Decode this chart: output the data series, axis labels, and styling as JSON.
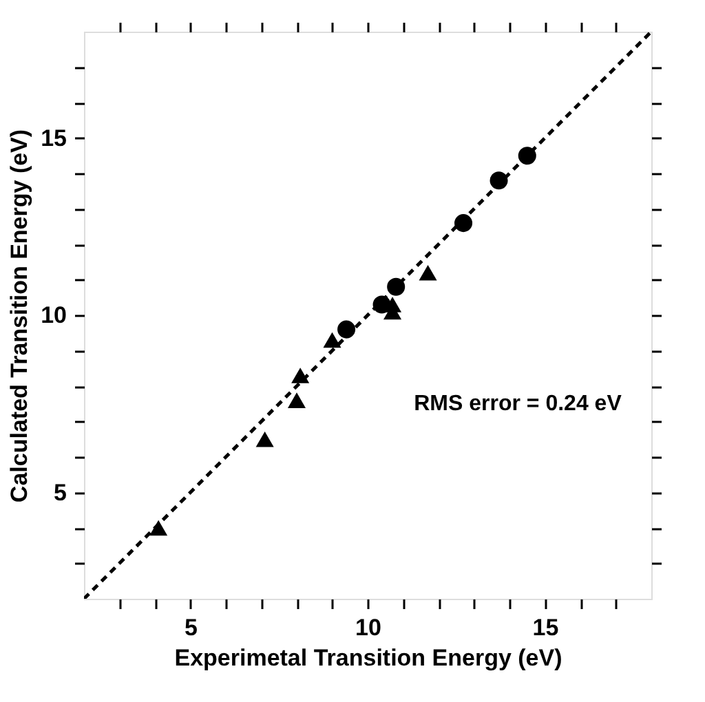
{
  "chart_data": {
    "type": "scatter",
    "xlabel": "Experimetal Transition Energy (eV)",
    "ylabel": "Calculated Transition Energy (eV)",
    "xlim": [
      2,
      18
    ],
    "ylim": [
      2,
      18
    ],
    "xticks": [
      {
        "value": 3,
        "label": null
      },
      {
        "value": 4,
        "label": null
      },
      5,
      {
        "value": 6,
        "label": null
      },
      {
        "value": 7,
        "label": null
      },
      {
        "value": 8,
        "label": null
      },
      {
        "value": 9,
        "label": null
      },
      10,
      {
        "value": 11,
        "label": null
      },
      {
        "value": 12,
        "label": null
      },
      {
        "value": 13,
        "label": null
      },
      {
        "value": 14,
        "label": null
      },
      15,
      {
        "value": 16,
        "label": null
      },
      {
        "value": 17,
        "label": null
      }
    ],
    "yticks": [
      {
        "value": 3,
        "label": null
      },
      {
        "value": 4,
        "label": null
      },
      5,
      {
        "value": 6,
        "label": null
      },
      {
        "value": 7,
        "label": null
      },
      {
        "value": 8,
        "label": null
      },
      {
        "value": 9,
        "label": null
      },
      10,
      {
        "value": 11,
        "label": null
      },
      {
        "value": 12,
        "label": null
      },
      {
        "value": 13,
        "label": null
      },
      {
        "value": 14,
        "label": null
      },
      15,
      {
        "value": 16,
        "label": null
      },
      {
        "value": 17,
        "label": null
      }
    ],
    "grid": false,
    "annotations": [
      "RMS error = 0.24 eV"
    ],
    "series": [
      {
        "type": "line",
        "color": "#000000",
        "marker": "none",
        "line_style": "dashed",
        "x": [
          2,
          18
        ],
        "values": [
          2,
          18
        ]
      },
      {
        "color": "#000000",
        "marker": "triangle",
        "x": [
          4.1,
          7.1,
          8.0,
          8.1,
          9.0,
          10.7,
          10.7,
          11.7
        ],
        "values": [
          4.0,
          6.5,
          7.6,
          8.3,
          9.3,
          10.3,
          10.1,
          11.2
        ]
      },
      {
        "color": "#000000",
        "marker": "circle",
        "x": [
          9.4,
          10.4,
          10.8,
          12.7,
          13.7,
          14.5
        ],
        "values": [
          9.6,
          10.3,
          10.8,
          12.6,
          13.8,
          14.5
        ]
      }
    ]
  }
}
